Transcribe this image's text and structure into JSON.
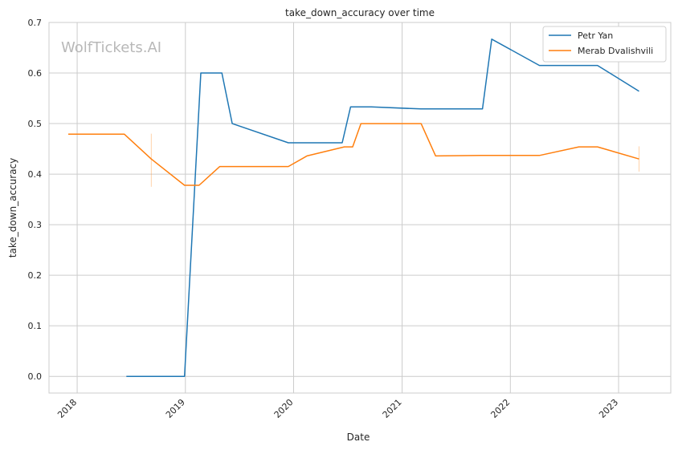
{
  "watermark": "WolfTickets.AI",
  "chart_data": {
    "type": "line",
    "title": "take_down_accuracy over time",
    "xlabel": "Date",
    "ylabel": "take_down_accuracy",
    "x_ticks": [
      "2018",
      "2019",
      "2020",
      "2021",
      "2022",
      "2023"
    ],
    "y_ticks": [
      "0.0",
      "0.1",
      "0.2",
      "0.3",
      "0.4",
      "0.5",
      "0.6",
      "0.7"
    ],
    "xlim": [
      "2017-09-28",
      "2023-06-26"
    ],
    "ylim": [
      -0.033,
      0.7
    ],
    "grid": true,
    "legend_position": "top-right",
    "series": [
      {
        "name": "Petr Yan",
        "color": "#1f77b4",
        "points": [
          [
            "2018-06-16",
            0.0
          ],
          [
            "2018-12-29",
            0.0
          ],
          [
            "2019-02-22",
            0.6
          ],
          [
            "2019-05-04",
            0.6
          ],
          [
            "2019-06-08",
            0.5
          ],
          [
            "2019-12-14",
            0.462
          ],
          [
            "2020-06-13",
            0.462
          ],
          [
            "2020-07-11",
            0.533
          ],
          [
            "2020-09-19",
            0.533
          ],
          [
            "2021-03-06",
            0.529
          ],
          [
            "2021-09-29",
            0.529
          ],
          [
            "2021-10-30",
            0.667
          ],
          [
            "2022-04-09",
            0.615
          ],
          [
            "2022-10-22",
            0.615
          ],
          [
            "2023-03-11",
            0.564
          ]
        ]
      },
      {
        "name": "Merab Dvalishvili",
        "color": "#ff7f0e",
        "points": [
          [
            "2017-12-02",
            0.479
          ],
          [
            "2018-06-09",
            0.479
          ],
          [
            "2018-09-08",
            0.43
          ],
          [
            "2018-12-29",
            0.378
          ],
          [
            "2019-02-16",
            0.378
          ],
          [
            "2019-04-27",
            0.415
          ],
          [
            "2019-12-14",
            0.415
          ],
          [
            "2020-02-15",
            0.436
          ],
          [
            "2020-06-20",
            0.454
          ],
          [
            "2020-07-18",
            0.454
          ],
          [
            "2020-08-15",
            0.5
          ],
          [
            "2021-03-06",
            0.5
          ],
          [
            "2021-04-24",
            0.436
          ],
          [
            "2021-09-25",
            0.437
          ],
          [
            "2022-04-09",
            0.437
          ],
          [
            "2022-08-20",
            0.454
          ],
          [
            "2022-10-22",
            0.454
          ],
          [
            "2023-03-11",
            0.43
          ]
        ]
      }
    ],
    "error_bars": [
      {
        "series": "Merab Dvalishvili",
        "x": "2018-09-08",
        "low": 0.375,
        "high": 0.48
      },
      {
        "series": "Merab Dvalishvili",
        "x": "2023-03-11",
        "low": 0.405,
        "high": 0.455
      }
    ]
  }
}
